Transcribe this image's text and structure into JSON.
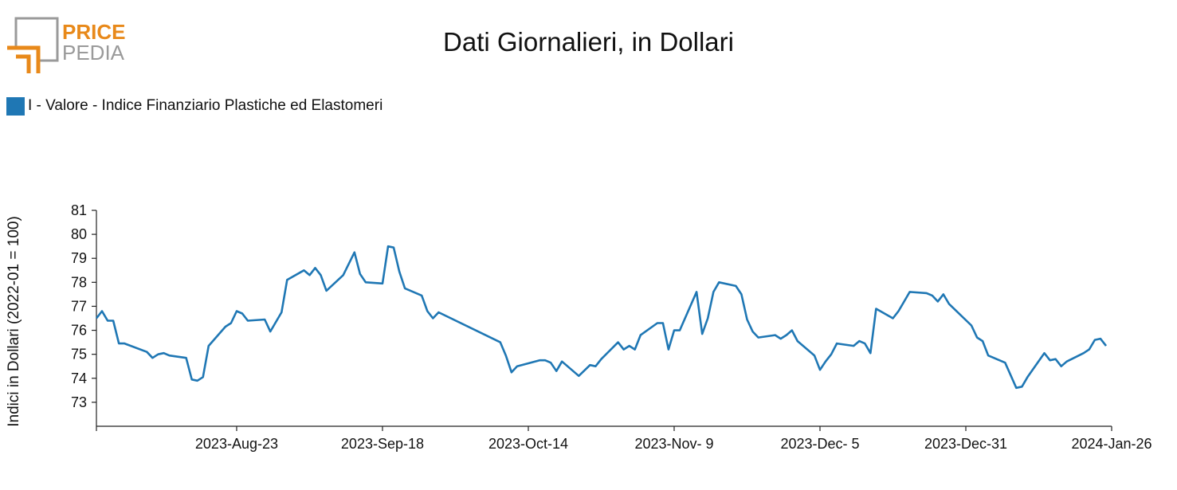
{
  "header": {
    "logo_top": "PRICE",
    "logo_bottom": "PEDIA",
    "logo_colors": {
      "orange": "#e8891a",
      "gray": "#9a9a9a"
    }
  },
  "chart_data": {
    "type": "line",
    "title": "Dati Giornalieri, in Dollari",
    "xlabel": "",
    "ylabel": "Indici in Dollari (2022-01 = 100)",
    "ylim": [
      72,
      81
    ],
    "yticks": [
      73,
      74,
      75,
      76,
      77,
      78,
      79,
      80,
      81
    ],
    "xlim": [
      "2023-07-29",
      "2024-01-26"
    ],
    "xticks": [
      "2023-Aug-23",
      "2023-Sep-18",
      "2023-Oct-14",
      "2023-Nov- 9",
      "2023-Dec- 5",
      "2023-Dec-31",
      "2024-Jan-26"
    ],
    "xtick_dates": [
      "2023-08-23",
      "2023-09-18",
      "2023-10-14",
      "2023-11-09",
      "2023-12-05",
      "2023-12-31",
      "2024-01-26"
    ],
    "grid": false,
    "legend_position": "top-left",
    "series": [
      {
        "name": "I - Valore - Indice Finanziario Plastiche ed Elastomeri",
        "color": "#1f77b4",
        "points": [
          [
            "2023-07-29",
            76.5
          ],
          [
            "2023-07-30",
            76.8
          ],
          [
            "2023-07-31",
            76.4
          ],
          [
            "2023-08-01",
            76.4
          ],
          [
            "2023-08-02",
            75.45
          ],
          [
            "2023-08-03",
            75.45
          ],
          [
            "2023-08-07",
            75.1
          ],
          [
            "2023-08-08",
            74.85
          ],
          [
            "2023-08-09",
            75.0
          ],
          [
            "2023-08-10",
            75.05
          ],
          [
            "2023-08-11",
            74.95
          ],
          [
            "2023-08-14",
            74.85
          ],
          [
            "2023-08-15",
            73.95
          ],
          [
            "2023-08-16",
            73.9
          ],
          [
            "2023-08-17",
            74.05
          ],
          [
            "2023-08-18",
            75.35
          ],
          [
            "2023-08-21",
            76.15
          ],
          [
            "2023-08-22",
            76.3
          ],
          [
            "2023-08-23",
            76.8
          ],
          [
            "2023-08-24",
            76.7
          ],
          [
            "2023-08-25",
            76.4
          ],
          [
            "2023-08-28",
            76.45
          ],
          [
            "2023-08-29",
            75.95
          ],
          [
            "2023-08-31",
            76.75
          ],
          [
            "2023-09-01",
            78.1
          ],
          [
            "2023-09-04",
            78.5
          ],
          [
            "2023-09-05",
            78.3
          ],
          [
            "2023-09-06",
            78.6
          ],
          [
            "2023-09-07",
            78.3
          ],
          [
            "2023-09-08",
            77.65
          ],
          [
            "2023-09-11",
            78.3
          ],
          [
            "2023-09-13",
            79.25
          ],
          [
            "2023-09-14",
            78.35
          ],
          [
            "2023-09-15",
            78.0
          ],
          [
            "2023-09-18",
            77.95
          ],
          [
            "2023-09-19",
            79.5
          ],
          [
            "2023-09-20",
            79.45
          ],
          [
            "2023-09-21",
            78.45
          ],
          [
            "2023-09-22",
            77.75
          ],
          [
            "2023-09-25",
            77.45
          ],
          [
            "2023-09-26",
            76.8
          ],
          [
            "2023-09-27",
            76.5
          ],
          [
            "2023-09-28",
            76.75
          ],
          [
            "2023-10-09",
            75.5
          ],
          [
            "2023-10-10",
            74.95
          ],
          [
            "2023-10-11",
            74.25
          ],
          [
            "2023-10-12",
            74.5
          ],
          [
            "2023-10-16",
            74.75
          ],
          [
            "2023-10-17",
            74.75
          ],
          [
            "2023-10-18",
            74.65
          ],
          [
            "2023-10-19",
            74.3
          ],
          [
            "2023-10-20",
            74.7
          ],
          [
            "2023-10-23",
            74.1
          ],
          [
            "2023-10-25",
            74.55
          ],
          [
            "2023-10-26",
            74.5
          ],
          [
            "2023-10-27",
            74.8
          ],
          [
            "2023-10-30",
            75.5
          ],
          [
            "2023-10-31",
            75.2
          ],
          [
            "2023-11-01",
            75.35
          ],
          [
            "2023-11-02",
            75.2
          ],
          [
            "2023-11-03",
            75.8
          ],
          [
            "2023-11-06",
            76.3
          ],
          [
            "2023-11-07",
            76.3
          ],
          [
            "2023-11-08",
            75.2
          ],
          [
            "2023-11-09",
            76.0
          ],
          [
            "2023-11-10",
            76.0
          ],
          [
            "2023-11-13",
            77.6
          ],
          [
            "2023-11-14",
            75.85
          ],
          [
            "2023-11-15",
            76.5
          ],
          [
            "2023-11-16",
            77.6
          ],
          [
            "2023-11-17",
            78.0
          ],
          [
            "2023-11-20",
            77.85
          ],
          [
            "2023-11-21",
            77.5
          ],
          [
            "2023-11-22",
            76.45
          ],
          [
            "2023-11-23",
            75.95
          ],
          [
            "2023-11-24",
            75.7
          ],
          [
            "2023-11-27",
            75.8
          ],
          [
            "2023-11-28",
            75.65
          ],
          [
            "2023-11-29",
            75.8
          ],
          [
            "2023-11-30",
            76.0
          ],
          [
            "2023-12-01",
            75.55
          ],
          [
            "2023-12-04",
            74.95
          ],
          [
            "2023-12-05",
            74.35
          ],
          [
            "2023-12-06",
            74.7
          ],
          [
            "2023-12-07",
            75.0
          ],
          [
            "2023-12-08",
            75.45
          ],
          [
            "2023-12-11",
            75.35
          ],
          [
            "2023-12-12",
            75.55
          ],
          [
            "2023-12-13",
            75.45
          ],
          [
            "2023-12-14",
            75.05
          ],
          [
            "2023-12-15",
            76.9
          ],
          [
            "2023-12-18",
            76.5
          ],
          [
            "2023-12-19",
            76.8
          ],
          [
            "2023-12-20",
            77.2
          ],
          [
            "2023-12-21",
            77.6
          ],
          [
            "2023-12-24",
            77.55
          ],
          [
            "2023-12-25",
            77.45
          ],
          [
            "2023-12-26",
            77.2
          ],
          [
            "2023-12-27",
            77.5
          ],
          [
            "2023-12-28",
            77.1
          ],
          [
            "2024-01-01",
            76.2
          ],
          [
            "2024-01-02",
            75.7
          ],
          [
            "2024-01-03",
            75.55
          ],
          [
            "2024-01-04",
            74.95
          ],
          [
            "2024-01-07",
            74.65
          ],
          [
            "2024-01-09",
            73.6
          ],
          [
            "2024-01-10",
            73.65
          ],
          [
            "2024-01-11",
            74.05
          ],
          [
            "2024-01-14",
            75.05
          ],
          [
            "2024-01-15",
            74.75
          ],
          [
            "2024-01-16",
            74.8
          ],
          [
            "2024-01-17",
            74.5
          ],
          [
            "2024-01-18",
            74.7
          ],
          [
            "2024-01-21",
            75.05
          ],
          [
            "2024-01-22",
            75.2
          ],
          [
            "2024-01-23",
            75.6
          ],
          [
            "2024-01-24",
            75.65
          ],
          [
            "2024-01-25",
            75.35
          ]
        ]
      }
    ]
  }
}
